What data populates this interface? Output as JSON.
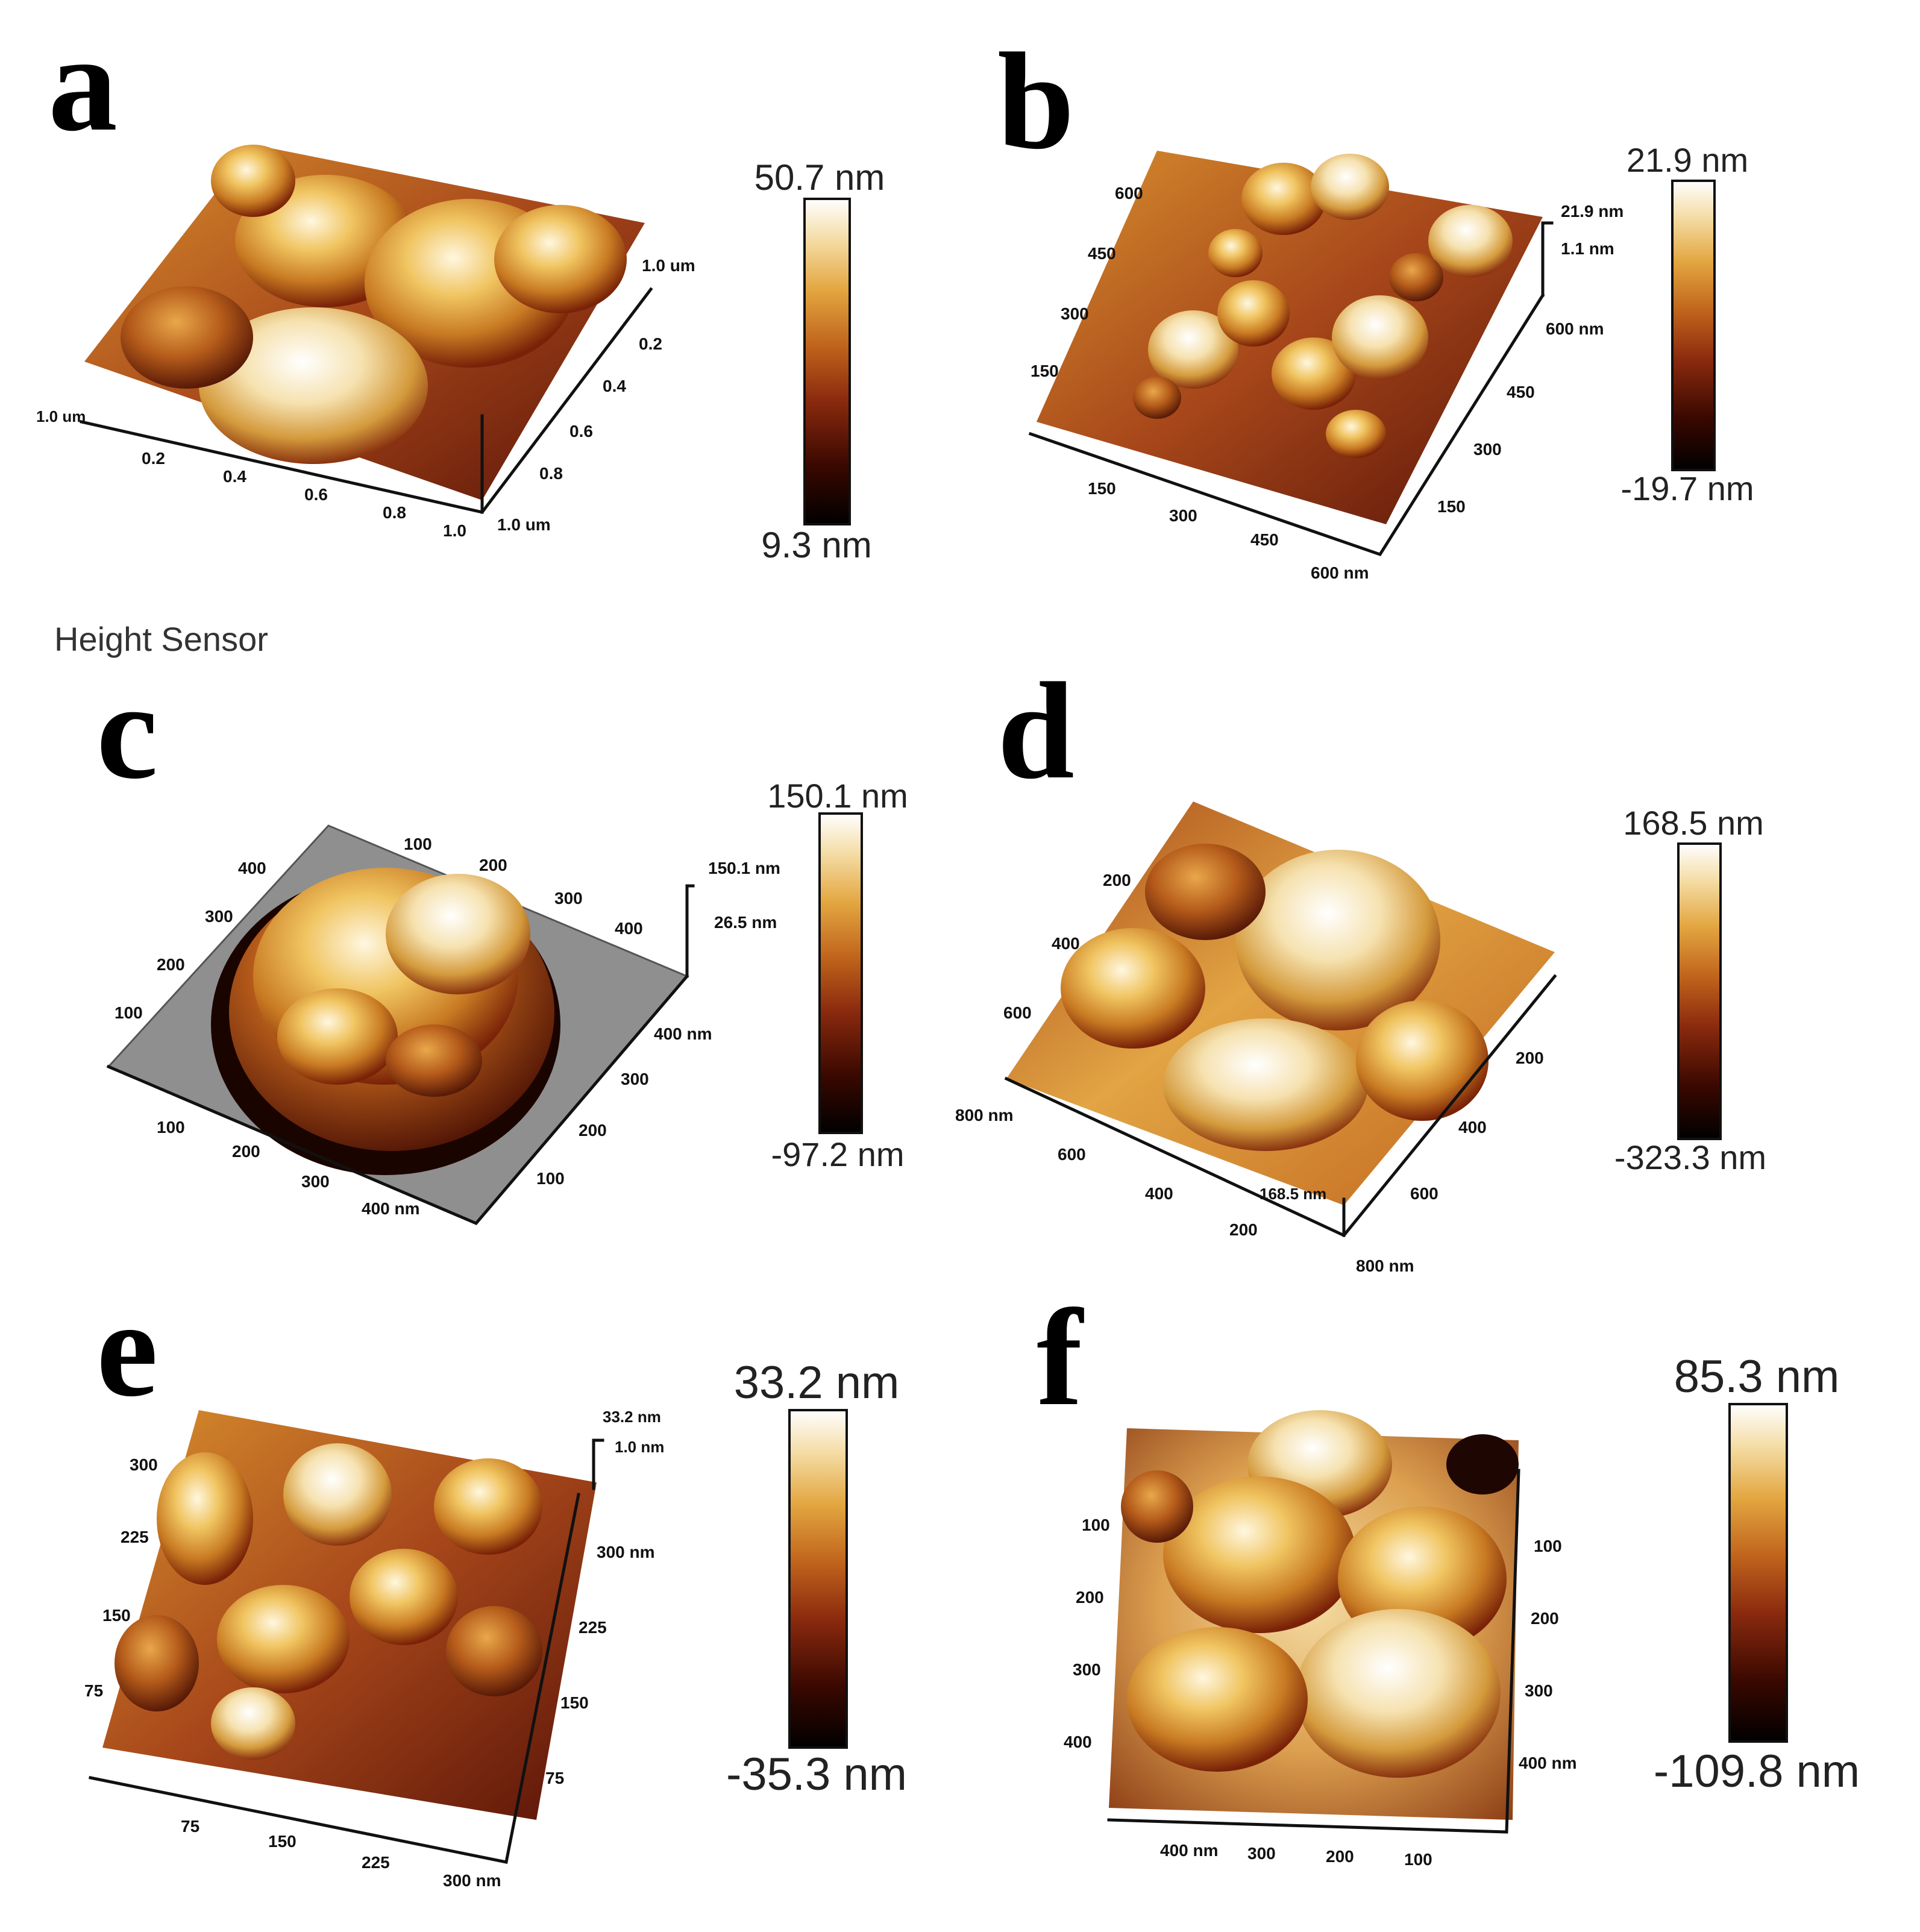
{
  "caption_label": "Height Sensor",
  "colormap": [
    "#000000",
    "#3a0800",
    "#8a2a0e",
    "#c0641c",
    "#e3a640",
    "#f4dba2",
    "#ffffff"
  ],
  "panels": [
    {
      "letter": "a",
      "colorbar": {
        "max": "50.7 nm",
        "min": "9.3 nm"
      },
      "x_ticks": [
        "0.2",
        "0.4",
        "0.6",
        "0.8",
        "1.0"
      ],
      "y_ticks": [
        "0.2",
        "0.4",
        "0.6",
        "0.8"
      ],
      "corner_left": "1.0 um",
      "corner_right": "1.0 um",
      "corner_back": "1.0 um",
      "left_ticks": []
    },
    {
      "letter": "b",
      "colorbar": {
        "max": "21.9 nm",
        "min": "-19.7 nm"
      },
      "x_ticks": [
        "150",
        "300",
        "450",
        "600 nm"
      ],
      "y_ticks": [
        "150",
        "300",
        "450",
        "600 nm"
      ],
      "left_ticks": [
        "150",
        "300",
        "450",
        "600"
      ],
      "z_scale": [
        "21.9 nm",
        "1.1 nm"
      ]
    },
    {
      "letter": "c",
      "colorbar": {
        "max": "150.1 nm",
        "min": "-97.2 nm"
      },
      "x_ticks": [
        "100",
        "200",
        "300",
        "400 nm"
      ],
      "y_ticks": [
        "100",
        "200",
        "300",
        "400 nm"
      ],
      "left_ticks": [
        "100",
        "200",
        "300",
        "400"
      ],
      "back_ticks": [
        "100",
        "200",
        "300",
        "400"
      ],
      "z_scale": [
        "150.1 nm",
        "26.5 nm"
      ]
    },
    {
      "letter": "d",
      "colorbar": {
        "max": "168.5 nm",
        "min": "-323.3 nm"
      },
      "x_ticks": [
        "200",
        "400",
        "600",
        "800 nm"
      ],
      "y_ticks": [
        "200",
        "400",
        "600",
        "800 nm"
      ],
      "left_ticks": [
        "200",
        "400",
        "600"
      ],
      "z_label": "168.5 nm"
    },
    {
      "letter": "e",
      "colorbar": {
        "max": "33.2 nm",
        "min": "-35.3 nm"
      },
      "x_ticks": [
        "75",
        "150",
        "225",
        "300 nm"
      ],
      "y_ticks": [
        "75",
        "150",
        "225",
        "300 nm"
      ],
      "left_ticks": [
        "75",
        "150",
        "225",
        "300"
      ],
      "z_scale": [
        "33.2 nm",
        "1.0 nm"
      ]
    },
    {
      "letter": "f",
      "colorbar": {
        "max": "85.3 nm",
        "min": "-109.8 nm"
      },
      "x_ticks": [
        "400 nm",
        "300",
        "200",
        "100"
      ],
      "y_ticks": [
        "100",
        "200",
        "300",
        "400 nm"
      ],
      "left_ticks": [
        "100",
        "200",
        "300",
        "400"
      ]
    }
  ]
}
